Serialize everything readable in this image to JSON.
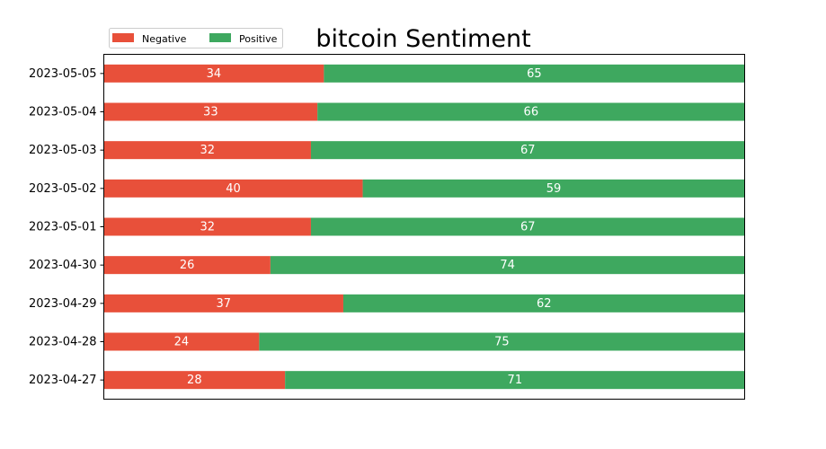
{
  "chart_data": {
    "type": "bar",
    "orientation": "horizontal",
    "stacked": true,
    "normalized": true,
    "title": "bitcoin Sentiment",
    "xlabel": "",
    "ylabel": "",
    "grid": false,
    "legend_position": "top-left",
    "categories": [
      "2023-05-05",
      "2023-05-04",
      "2023-05-03",
      "2023-05-02",
      "2023-05-01",
      "2023-04-30",
      "2023-04-29",
      "2023-04-28",
      "2023-04-27"
    ],
    "series": [
      {
        "name": "Negative",
        "color": "#e8503a",
        "values": [
          34,
          33,
          32,
          40,
          32,
          26,
          37,
          24,
          28
        ]
      },
      {
        "name": "Positive",
        "color": "#3ea85f",
        "values": [
          65,
          66,
          67,
          59,
          67,
          74,
          62,
          75,
          71
        ]
      }
    ]
  }
}
